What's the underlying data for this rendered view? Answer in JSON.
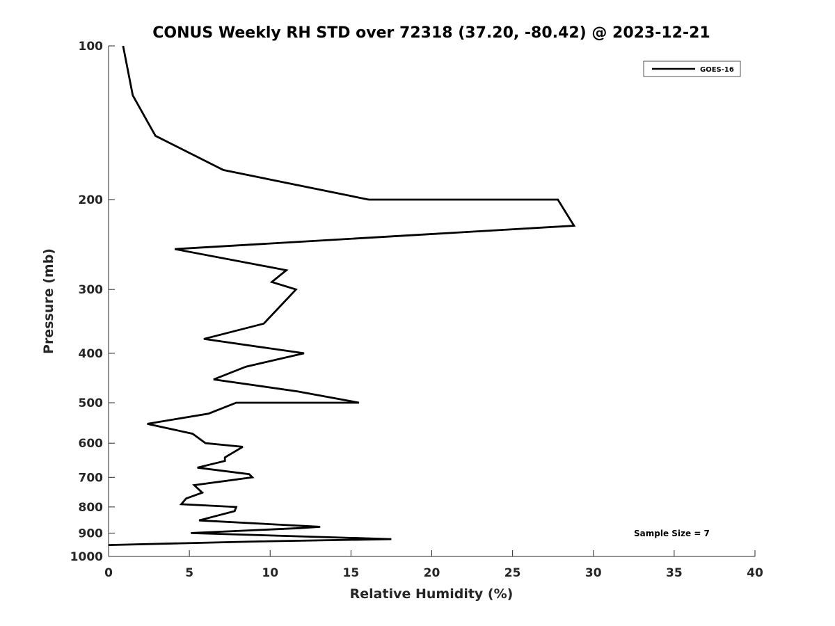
{
  "chart_data": {
    "type": "line",
    "title": "CONUS Weekly RH STD over 72318 (37.20, -80.42) @ 2023-12-21",
    "xlabel": "Relative Humidity (%)",
    "ylabel": "Pressure (mb)",
    "xlim": [
      0,
      40
    ],
    "ylim": [
      100,
      1000
    ],
    "y_scale": "log",
    "y_reversed": true,
    "x_ticks": [
      "0",
      "5",
      "10",
      "15",
      "20",
      "25",
      "30",
      "35",
      "40"
    ],
    "y_ticks": [
      "100",
      "200",
      "300",
      "400",
      "500",
      "600",
      "700",
      "800",
      "900",
      "1000"
    ],
    "grid": false,
    "legend_position": "top-right",
    "annotation": "Sample Size = 7",
    "series": [
      {
        "name": "GOES-16",
        "color": "#000000",
        "points": [
          [
            0.9,
            100
          ],
          [
            1.5,
            125
          ],
          [
            2.9,
            150
          ],
          [
            7.1,
            175
          ],
          [
            16.1,
            200
          ],
          [
            27.8,
            200
          ],
          [
            28.8,
            225
          ],
          [
            4.1,
            250
          ],
          [
            11.0,
            275
          ],
          [
            10.1,
            290
          ],
          [
            11.6,
            300
          ],
          [
            9.6,
            350
          ],
          [
            5.9,
            375
          ],
          [
            12.1,
            400
          ],
          [
            8.5,
            425
          ],
          [
            6.5,
            450
          ],
          [
            11.7,
            475
          ],
          [
            15.5,
            500
          ],
          [
            7.9,
            500
          ],
          [
            6.2,
            525
          ],
          [
            2.4,
            550
          ],
          [
            5.2,
            575
          ],
          [
            6.0,
            600
          ],
          [
            8.3,
            610
          ],
          [
            7.2,
            640
          ],
          [
            7.2,
            650
          ],
          [
            5.5,
            670
          ],
          [
            8.7,
            690
          ],
          [
            8.9,
            700
          ],
          [
            5.3,
            725
          ],
          [
            5.8,
            750
          ],
          [
            4.8,
            770
          ],
          [
            4.5,
            790
          ],
          [
            7.9,
            800
          ],
          [
            7.8,
            815
          ],
          [
            5.6,
            850
          ],
          [
            13.1,
            875
          ],
          [
            11.8,
            880
          ],
          [
            5.1,
            900
          ],
          [
            17.5,
            925
          ],
          [
            8.9,
            935
          ],
          [
            0.0,
            950
          ]
        ]
      }
    ]
  }
}
